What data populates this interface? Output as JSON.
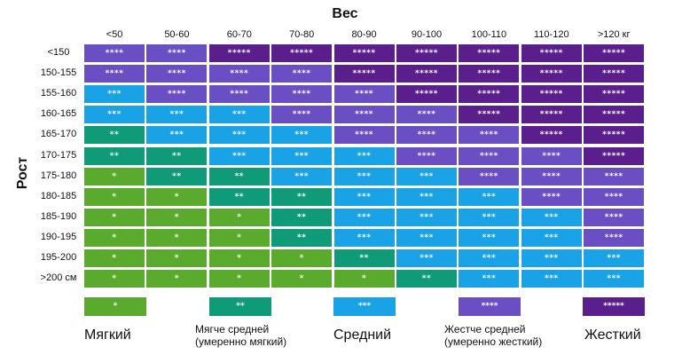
{
  "titles": {
    "weight": "Вес",
    "height": "Рост"
  },
  "columns": [
    "<50",
    "50-60",
    "60-70",
    "70-80",
    "80-90",
    "90-100",
    "100-110",
    "110-120",
    ">120 кг"
  ],
  "rows": [
    "<150",
    "150-155",
    "155-160",
    "160-165",
    "165-170",
    "170-175",
    "175-180",
    "180-185",
    "185-190",
    "190-195",
    "195-200",
    ">200 см"
  ],
  "levels": {
    "1": {
      "stars": "*",
      "color": "#5aaa2d"
    },
    "2": {
      "stars": "**",
      "color": "#0f9a78"
    },
    "3": {
      "stars": "***",
      "color": "#1aa2e6"
    },
    "4": {
      "stars": "****",
      "color": "#6a4fc4"
    },
    "5": {
      "stars": "*****",
      "color": "#5a1f8c"
    }
  },
  "grid": [
    [
      4,
      4,
      5,
      5,
      5,
      5,
      5,
      5,
      5
    ],
    [
      4,
      4,
      4,
      4,
      5,
      5,
      5,
      5,
      5
    ],
    [
      3,
      4,
      4,
      4,
      4,
      5,
      5,
      5,
      5
    ],
    [
      3,
      3,
      3,
      4,
      4,
      4,
      5,
      5,
      5
    ],
    [
      2,
      3,
      3,
      3,
      4,
      4,
      4,
      5,
      5
    ],
    [
      2,
      2,
      3,
      3,
      3,
      4,
      4,
      4,
      5
    ],
    [
      1,
      2,
      2,
      3,
      3,
      3,
      4,
      4,
      4
    ],
    [
      1,
      1,
      2,
      2,
      3,
      3,
      3,
      4,
      4
    ],
    [
      1,
      1,
      1,
      2,
      3,
      3,
      3,
      3,
      4
    ],
    [
      1,
      1,
      1,
      2,
      3,
      3,
      3,
      3,
      4
    ],
    [
      1,
      1,
      1,
      1,
      2,
      3,
      3,
      3,
      3
    ],
    [
      1,
      1,
      1,
      1,
      1,
      2,
      3,
      3,
      3
    ]
  ],
  "legend": [
    {
      "stars": "*",
      "color": "#5aaa2d",
      "label": "Мягкий",
      "label2": ""
    },
    {
      "stars": "**",
      "color": "#0f9a78",
      "label": "Мягче средней",
      "label2": "(умеренно мягкий)"
    },
    {
      "stars": "***",
      "color": "#1aa2e6",
      "label": "Средний",
      "label2": ""
    },
    {
      "stars": "****",
      "color": "#6a4fc4",
      "label": "Жестче средней",
      "label2": "(умеренно жесткий)"
    },
    {
      "stars": "*****",
      "color": "#5a1f8c",
      "label": "Жесткий",
      "label2": ""
    }
  ]
}
